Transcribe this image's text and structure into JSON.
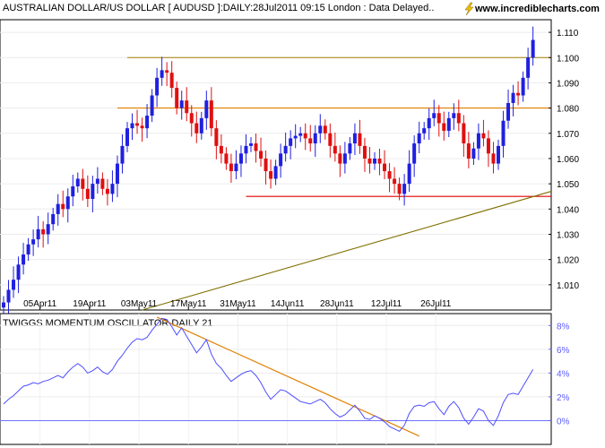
{
  "header": {
    "title": "AUSTRALIAN DOLLAR/US DOLLAR [ AUDUSD ]:DAILY:28Jul2011 09:15 London : Data Delayed..",
    "brand": "www.incrediblecharts.com",
    "brand_icon": "lightning-icon"
  },
  "chart_data": [
    {
      "type": "candlestick",
      "title": "AUSTRALIAN DOLLAR/US DOLLAR [ AUDUSD ]:DAILY:28Jul2011 09:15 London : Data Delayed..",
      "x_tick_labels": [
        "05Apr11",
        "19Apr11",
        "03May11",
        "17May11",
        "31May11",
        "14Jun11",
        "28Jun11",
        "12Jul11",
        "26Jul11"
      ],
      "ylim": [
        1.0,
        1.115
      ],
      "y_ticks": [
        1.01,
        1.02,
        1.03,
        1.04,
        1.05,
        1.06,
        1.07,
        1.08,
        1.09,
        1.1,
        1.11
      ],
      "y_tick_labels": [
        "1.010",
        "1.020",
        "1.030",
        "1.040",
        "1.050",
        "1.060",
        "1.070",
        "1.080",
        "1.090",
        "1.100",
        "1.110"
      ],
      "colors": {
        "up": "#2020e0",
        "down": "#e01010"
      },
      "closes": [
        1.003,
        1.008,
        1.012,
        1.018,
        1.022,
        1.026,
        1.028,
        1.032,
        1.03,
        1.034,
        1.038,
        1.042,
        1.04,
        1.045,
        1.049,
        1.052,
        1.048,
        1.044,
        1.05,
        1.052,
        1.048,
        1.046,
        1.05,
        1.058,
        1.065,
        1.072,
        1.074,
        1.073,
        1.072,
        1.077,
        1.085,
        1.092,
        1.095,
        1.094,
        1.088,
        1.08,
        1.083,
        1.078,
        1.074,
        1.07,
        1.076,
        1.083,
        1.072,
        1.065,
        1.062,
        1.058,
        1.055,
        1.058,
        1.062,
        1.065,
        1.066,
        1.063,
        1.06,
        1.055,
        1.052,
        1.057,
        1.062,
        1.065,
        1.068,
        1.069,
        1.07,
        1.068,
        1.066,
        1.07,
        1.073,
        1.07,
        1.065,
        1.062,
        1.058,
        1.062,
        1.066,
        1.07,
        1.065,
        1.06,
        1.058,
        1.06,
        1.058,
        1.055,
        1.052,
        1.05,
        1.046,
        1.05,
        1.058,
        1.066,
        1.07,
        1.072,
        1.076,
        1.078,
        1.074,
        1.071,
        1.076,
        1.078,
        1.074,
        1.066,
        1.06,
        1.064,
        1.07,
        1.068,
        1.062,
        1.058,
        1.065,
        1.075,
        1.082,
        1.086,
        1.085,
        1.092,
        1.1,
        1.107
      ],
      "levels": [
        {
          "y": 1.1,
          "color": "#a08000"
        },
        {
          "y": 1.08,
          "color": "#e08000"
        },
        {
          "y": 1.045,
          "color": "#e00000"
        }
      ],
      "trendline": {
        "color": "#807000"
      }
    },
    {
      "type": "line",
      "title": "TWIGGS MOMENTUM OSCILLATOR DAILY 21",
      "ylim": [
        -2,
        9
      ],
      "y_ticks": [
        0,
        2,
        4,
        6,
        8
      ],
      "y_tick_labels": [
        "0%",
        "2%",
        "4%",
        "6%",
        "8%"
      ],
      "color": "#4d4dff",
      "values": [
        1.4,
        1.8,
        2.1,
        2.5,
        2.9,
        3.0,
        3.2,
        3.1,
        3.3,
        3.4,
        3.6,
        3.8,
        3.6,
        4.1,
        4.5,
        4.8,
        4.5,
        4.0,
        4.2,
        4.5,
        4.1,
        3.9,
        4.3,
        5.0,
        5.5,
        6.1,
        6.6,
        6.9,
        6.8,
        7.0,
        7.6,
        8.1,
        8.6,
        8.5,
        7.9,
        7.2,
        7.8,
        7.1,
        6.4,
        5.7,
        6.2,
        6.8,
        5.6,
        4.8,
        4.4,
        3.8,
        3.3,
        3.6,
        3.9,
        4.1,
        4.2,
        3.8,
        3.2,
        2.4,
        1.8,
        2.2,
        2.6,
        2.5,
        2.2,
        1.9,
        1.6,
        1.5,
        1.4,
        1.6,
        1.8,
        1.5,
        1.0,
        0.6,
        0.3,
        0.5,
        0.9,
        1.3,
        0.8,
        0.2,
        0.1,
        0.4,
        0.2,
        -0.1,
        -0.5,
        -0.7,
        -0.9,
        -0.4,
        0.6,
        1.2,
        1.3,
        1.2,
        1.5,
        1.6,
        1.0,
        0.5,
        1.2,
        1.6,
        1.1,
        0.2,
        -0.3,
        0.3,
        1.0,
        0.8,
        0.0,
        -0.4,
        0.4,
        1.5,
        2.2,
        2.3,
        2.2,
        2.9,
        3.6,
        4.3
      ],
      "trendline": {
        "color": "#e08000"
      }
    }
  ]
}
